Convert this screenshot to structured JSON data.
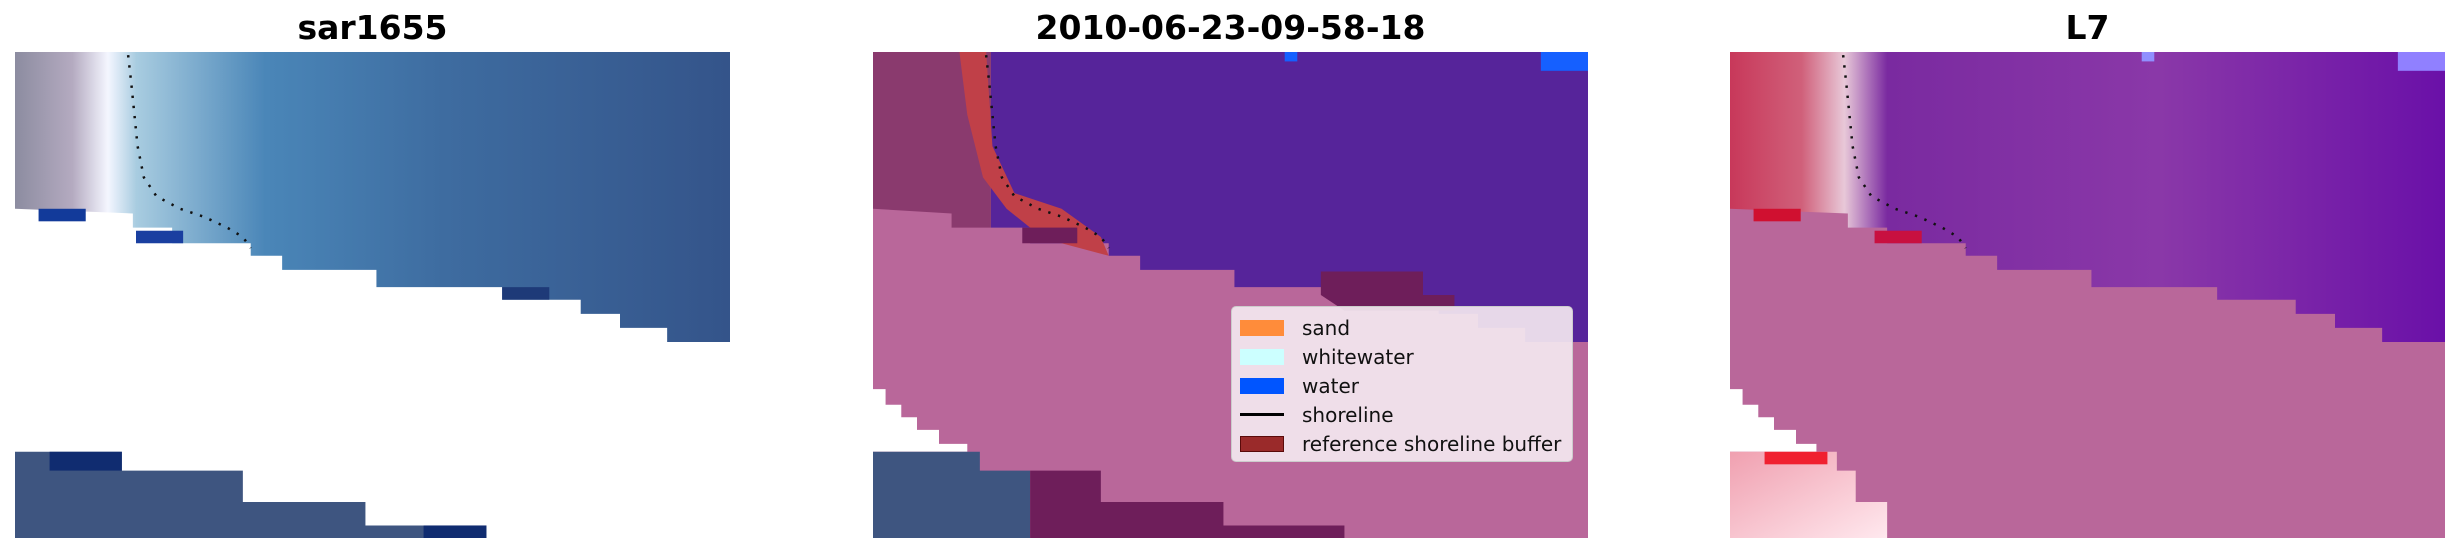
{
  "panels": [
    {
      "title": "sar1655"
    },
    {
      "title": "2010-06-23-09-58-18"
    },
    {
      "title": "L7"
    }
  ],
  "legend": {
    "items": [
      {
        "label": "sand",
        "color": "#ff8c3a",
        "kind": "patch"
      },
      {
        "label": "whitewater",
        "color": "#ccffff",
        "kind": "patch"
      },
      {
        "label": "water",
        "color": "#0055ff",
        "kind": "patch"
      },
      {
        "label": "shoreline",
        "color": "#000000",
        "kind": "line"
      },
      {
        "label": "reference shoreline buffer",
        "color": "#9a2a2a",
        "kind": "patch"
      }
    ]
  },
  "colors": {
    "water_class": "#56249a",
    "buffer_overlay": "#b9679a",
    "shore_red": "#c8385a"
  }
}
